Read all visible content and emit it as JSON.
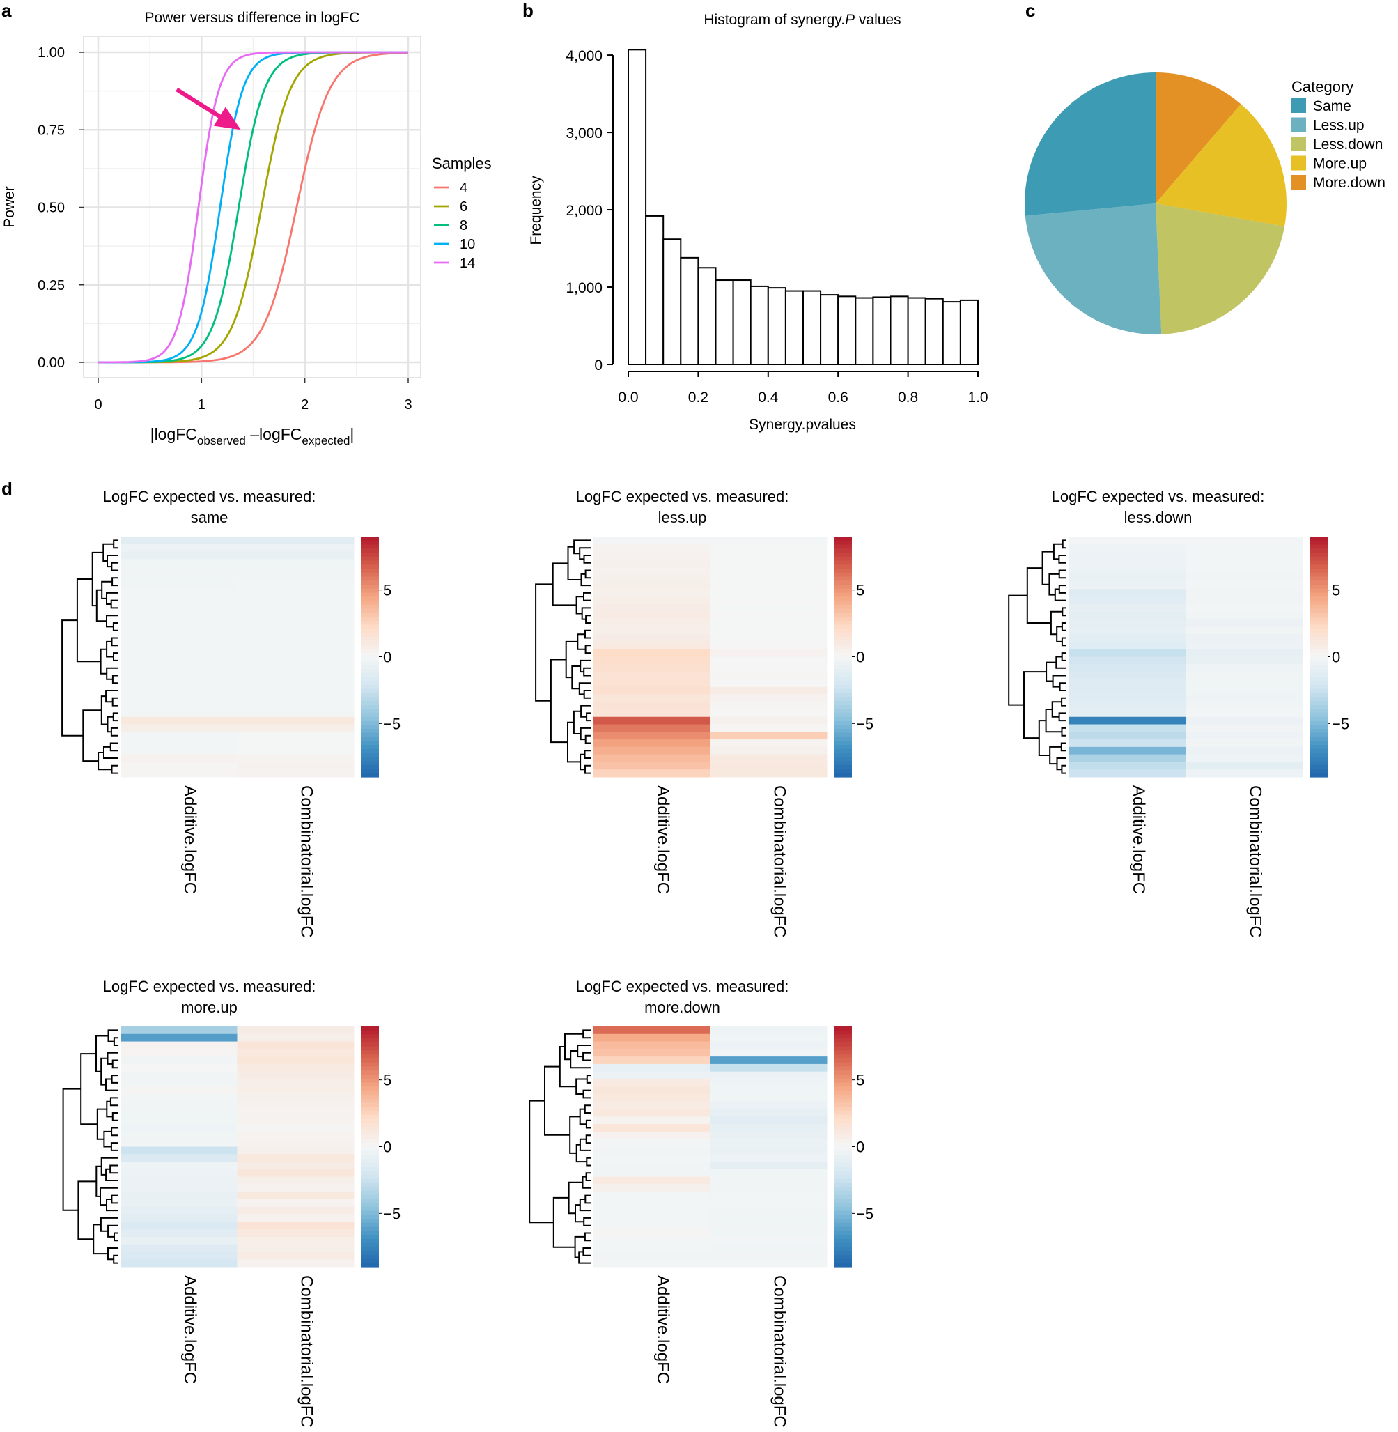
{
  "panel_labels": [
    "a",
    "b",
    "c",
    "d"
  ],
  "chart_data": [
    {
      "id": "a",
      "type": "line",
      "title": "Power versus difference in logFC",
      "xlabel_parts": [
        "|logFC",
        "observed",
        " –logFC",
        "expected",
        "|"
      ],
      "ylabel": "Power",
      "xlim": [
        0,
        3
      ],
      "ylim": [
        0,
        1
      ],
      "xticks": [
        0,
        1,
        2,
        3
      ],
      "xtick_labels": [
        "0",
        "1",
        "2",
        "3"
      ],
      "yticks": [
        0,
        0.25,
        0.5,
        0.75,
        1.0
      ],
      "ytick_labels": [
        "0.00",
        "0.25",
        "0.50",
        "0.75",
        "1.00"
      ],
      "grid": true,
      "legend_title": "Samples",
      "legend_position": "right",
      "series": [
        {
          "name": "4",
          "color": "#F8766D",
          "midpoint": 1.92,
          "width": 0.16
        },
        {
          "name": "6",
          "color": "#A3A500",
          "midpoint": 1.58,
          "width": 0.14
        },
        {
          "name": "8",
          "color": "#00BF7D",
          "midpoint": 1.36,
          "width": 0.125
        },
        {
          "name": "10",
          "color": "#00B0F6",
          "midpoint": 1.18,
          "width": 0.11
        },
        {
          "name": "14",
          "color": "#E76BF3",
          "midpoint": 0.97,
          "width": 0.1
        }
      ],
      "annotation": {
        "type": "arrow",
        "color": "#EE1A8A",
        "from": [
          0.76,
          0.88
        ],
        "to": [
          1.38,
          0.75
        ]
      }
    },
    {
      "id": "b",
      "type": "bar",
      "title_parts": [
        "Histogram of synergy.",
        "P",
        " values"
      ],
      "xlabel": "Synergy.pvalues",
      "ylabel": "Frequency",
      "xlim": [
        0,
        1
      ],
      "ylim": [
        0,
        4100
      ],
      "xticks": [
        0,
        0.2,
        0.4,
        0.6,
        0.8,
        1.0
      ],
      "xtick_labels": [
        "0.0",
        "0.2",
        "0.4",
        "0.6",
        "0.8",
        "1.0"
      ],
      "yticks": [
        0,
        1000,
        2000,
        3000,
        4000
      ],
      "ytick_labels": [
        "0",
        "1,000",
        "2,000",
        "3,000",
        "4,000"
      ],
      "bin_width": 0.05,
      "values": [
        4070,
        1920,
        1620,
        1380,
        1250,
        1090,
        1090,
        1010,
        990,
        950,
        950,
        900,
        880,
        860,
        870,
        880,
        860,
        850,
        810,
        830
      ]
    },
    {
      "id": "c",
      "type": "pie",
      "legend_title": "Category",
      "legend_position": "right",
      "slices": [
        {
          "label": "Same",
          "value": 26.5,
          "color": "#3E9BB4"
        },
        {
          "label": "Less.up",
          "value": 24.2,
          "color": "#6CB1C0"
        },
        {
          "label": "Less.down",
          "value": 21.5,
          "color": "#C1C462"
        },
        {
          "label": "More.up",
          "value": 16.5,
          "color": "#E6C025"
        },
        {
          "label": "More.down",
          "value": 11.3,
          "color": "#E39125"
        }
      ],
      "draw_order": [
        "More.down",
        "More.up",
        "Less.down",
        "Less.up",
        "Same"
      ]
    },
    {
      "id": "d1",
      "type": "heatmap",
      "title": [
        "LogFC expected vs. measured:",
        "same"
      ],
      "columns": [
        "Additive.logFC",
        "Combinatorial.logFC"
      ],
      "colorbar_ticks": [
        5,
        0,
        -5
      ],
      "colorbar_tick_labels": [
        "5",
        "0",
        "−5"
      ],
      "vlim": [
        -9,
        9
      ],
      "rows": [
        [
          -1.2,
          -1.2
        ],
        [
          -0.5,
          -0.5
        ],
        [
          -0.8,
          -0.8
        ],
        [
          -0.3,
          -0.3
        ],
        [
          -0.2,
          -0.2
        ],
        [
          -0.3,
          -0.2
        ],
        [
          -0.2,
          -0.1
        ],
        [
          -0.1,
          -0.1
        ],
        [
          -0.1,
          -0.1
        ],
        [
          -0.1,
          -0.1
        ],
        [
          -0.1,
          -0.1
        ],
        [
          -0.1,
          -0.1
        ],
        [
          -0.1,
          -0.1
        ],
        [
          -0.1,
          -0.1
        ],
        [
          -0.1,
          -0.1
        ],
        [
          -0.1,
          -0.1
        ],
        [
          -0.1,
          -0.1
        ],
        [
          -0.1,
          -0.1
        ],
        [
          -0.1,
          -0.1
        ],
        [
          -0.1,
          -0.1
        ],
        [
          -0.1,
          -0.1
        ],
        [
          -0.1,
          -0.1
        ],
        [
          -0.1,
          -0.1
        ],
        [
          -0.1,
          -0.1
        ],
        [
          1.2,
          1.2
        ],
        [
          0.6,
          0.6
        ],
        [
          -0.1,
          0.0
        ],
        [
          -0.1,
          0.0
        ],
        [
          -0.1,
          0.0
        ],
        [
          0.4,
          0.3
        ],
        [
          0.2,
          0.4
        ],
        [
          0.2,
          0.3
        ]
      ]
    },
    {
      "id": "d2",
      "type": "heatmap",
      "title": [
        "LogFC expected vs. measured:",
        "less.up"
      ],
      "columns": [
        "Additive.logFC",
        "Combinatorial.logFC"
      ],
      "colorbar_ticks": [
        5,
        0,
        -5
      ],
      "colorbar_tick_labels": [
        "5",
        "0",
        "−5"
      ],
      "vlim": [
        -9,
        9
      ],
      "rows": [
        [
          -0.1,
          -0.1
        ],
        [
          0.3,
          0.0
        ],
        [
          0.4,
          0.0
        ],
        [
          0.5,
          0.0
        ],
        [
          0.4,
          0.0
        ],
        [
          0.5,
          0.0
        ],
        [
          0.6,
          0.1
        ],
        [
          0.5,
          0.0
        ],
        [
          0.7,
          0.1
        ],
        [
          0.8,
          0.0
        ],
        [
          0.9,
          0.1
        ],
        [
          0.7,
          0.0
        ],
        [
          0.6,
          0.0
        ],
        [
          0.8,
          0.0
        ],
        [
          1.0,
          0.1
        ],
        [
          2.2,
          0.4
        ],
        [
          2.0,
          0.1
        ],
        [
          1.8,
          0.1
        ],
        [
          1.6,
          0.2
        ],
        [
          1.7,
          0.1
        ],
        [
          1.8,
          0.8
        ],
        [
          1.4,
          0.4
        ],
        [
          1.6,
          0.2
        ],
        [
          1.5,
          0.1
        ],
        [
          7.0,
          0.5
        ],
        [
          6.0,
          0.2
        ],
        [
          5.3,
          2.8
        ],
        [
          4.6,
          0.3
        ],
        [
          4.1,
          0.5
        ],
        [
          3.6,
          1.0
        ],
        [
          3.3,
          1.2
        ],
        [
          2.6,
          1.1
        ]
      ]
    },
    {
      "id": "d3",
      "type": "heatmap",
      "title": [
        "LogFC expected vs. measured:",
        "less.down"
      ],
      "columns": [
        "Additive.logFC",
        "Combinatorial.logFC"
      ],
      "colorbar_ticks": [
        5,
        0,
        -5
      ],
      "colorbar_tick_labels": [
        "5",
        "0",
        "−5"
      ],
      "vlim": [
        -9,
        9
      ],
      "rows": [
        [
          -0.1,
          -0.1
        ],
        [
          -0.4,
          -0.1
        ],
        [
          -0.5,
          -0.1
        ],
        [
          -0.5,
          -0.1
        ],
        [
          -0.6,
          -0.1
        ],
        [
          -0.7,
          -0.2
        ],
        [
          -0.6,
          -0.1
        ],
        [
          -1.4,
          -0.2
        ],
        [
          -1.2,
          -0.2
        ],
        [
          -0.9,
          -0.1
        ],
        [
          -1.1,
          -0.2
        ],
        [
          -1.0,
          -0.6
        ],
        [
          -0.9,
          -0.2
        ],
        [
          -1.1,
          -0.6
        ],
        [
          -1.3,
          -0.5
        ],
        [
          -2.6,
          -0.9
        ],
        [
          -2.2,
          -0.8
        ],
        [
          -1.8,
          -0.4
        ],
        [
          -1.6,
          -0.2
        ],
        [
          -1.5,
          -0.3
        ],
        [
          -1.4,
          -0.3
        ],
        [
          -1.3,
          -0.4
        ],
        [
          -1.2,
          -0.2
        ],
        [
          -1.1,
          -0.1
        ],
        [
          -7.6,
          -0.6
        ],
        [
          -2.6,
          -0.2
        ],
        [
          -3.0,
          -0.5
        ],
        [
          -2.4,
          -0.2
        ],
        [
          -5.2,
          -0.6
        ],
        [
          -3.6,
          -0.4
        ],
        [
          -2.8,
          -1.1
        ],
        [
          -2.4,
          -0.5
        ]
      ]
    },
    {
      "id": "d4",
      "type": "heatmap",
      "title": [
        "LogFC expected vs. measured:",
        "more.up"
      ],
      "columns": [
        "Additive.logFC",
        "Combinatorial.logFC"
      ],
      "colorbar_ticks": [
        5,
        0,
        -5
      ],
      "colorbar_tick_labels": [
        "5",
        "0",
        "−5"
      ],
      "vlim": [
        -9,
        9
      ],
      "rows": [
        [
          -3.8,
          0.8
        ],
        [
          -6.3,
          0.6
        ],
        [
          0.3,
          1.5
        ],
        [
          0.2,
          1.2
        ],
        [
          -0.2,
          1.4
        ],
        [
          0.1,
          1.0
        ],
        [
          -0.2,
          0.8
        ],
        [
          -0.2,
          0.6
        ],
        [
          0.2,
          0.7
        ],
        [
          -0.1,
          0.5
        ],
        [
          -0.2,
          0.4
        ],
        [
          -0.3,
          0.3
        ],
        [
          -0.3,
          0.3
        ],
        [
          -0.4,
          0.2
        ],
        [
          -0.3,
          0.3
        ],
        [
          -0.2,
          0.4
        ],
        [
          -2.4,
          0.5
        ],
        [
          -1.6,
          1.2
        ],
        [
          -0.4,
          0.8
        ],
        [
          -0.5,
          1.3
        ],
        [
          -0.6,
          0.6
        ],
        [
          -0.6,
          0.4
        ],
        [
          -0.8,
          1.1
        ],
        [
          -0.7,
          0.3
        ],
        [
          -1.0,
          0.8
        ],
        [
          -1.2,
          0.4
        ],
        [
          -1.6,
          1.6
        ],
        [
          -1.2,
          1.2
        ],
        [
          -0.8,
          0.7
        ],
        [
          -1.4,
          0.6
        ],
        [
          -1.6,
          0.9
        ],
        [
          -2.0,
          0.4
        ]
      ]
    },
    {
      "id": "d5",
      "type": "heatmap",
      "title": [
        "LogFC expected vs. measured:",
        "more.down"
      ],
      "columns": [
        "Additive.logFC",
        "Combinatorial.logFC"
      ],
      "colorbar_ticks": [
        5,
        0,
        -5
      ],
      "colorbar_tick_labels": [
        "5",
        "0",
        "−5"
      ],
      "vlim": [
        -9,
        9
      ],
      "rows": [
        [
          6.4,
          -0.4
        ],
        [
          4.3,
          -0.3
        ],
        [
          3.6,
          -0.5
        ],
        [
          3.3,
          -0.2
        ],
        [
          2.5,
          -6.2
        ],
        [
          -0.9,
          -2.6
        ],
        [
          -0.6,
          -0.6
        ],
        [
          1.0,
          -0.4
        ],
        [
          1.3,
          -0.3
        ],
        [
          1.2,
          -0.3
        ],
        [
          0.9,
          -0.6
        ],
        [
          1.2,
          -0.9
        ],
        [
          0.3,
          -1.2
        ],
        [
          1.4,
          -0.9
        ],
        [
          0.4,
          -0.8
        ],
        [
          -0.1,
          -0.6
        ],
        [
          -0.2,
          -0.7
        ],
        [
          -0.1,
          -0.5
        ],
        [
          -0.2,
          -1.0
        ],
        [
          -0.2,
          -0.3
        ],
        [
          1.0,
          -0.2
        ],
        [
          0.5,
          -0.2
        ],
        [
          -0.1,
          -0.2
        ],
        [
          -0.1,
          -0.1
        ],
        [
          -0.1,
          -0.2
        ],
        [
          -0.1,
          -0.3
        ],
        [
          -0.1,
          -0.2
        ],
        [
          0.2,
          -0.3
        ],
        [
          -0.1,
          -0.1
        ],
        [
          -0.1,
          -0.3
        ],
        [
          -0.2,
          -0.2
        ],
        [
          -0.1,
          -0.1
        ]
      ]
    }
  ]
}
